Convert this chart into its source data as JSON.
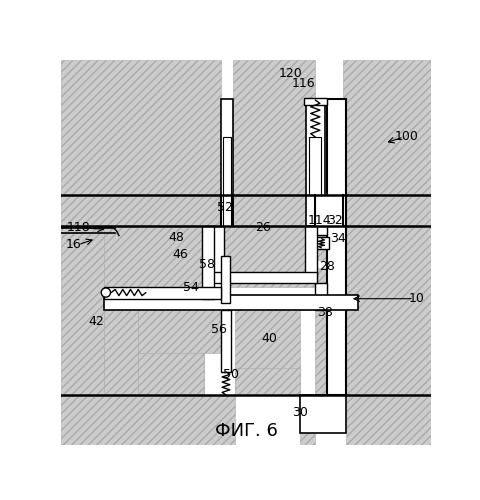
{
  "title": "ФИГ. 6",
  "title_fontsize": 13,
  "bg": "#ffffff",
  "lc": "#000000",
  "hatch_fc": "#cccccc",
  "hatch_ec": "#aaaaaa",
  "hatch_pattern": "////",
  "labels": [
    "10",
    "16",
    "26",
    "28",
    "30",
    "32",
    "34",
    "38",
    "40",
    "42",
    "46",
    "48",
    "50",
    "52",
    "54",
    "56",
    "58",
    "100",
    "114",
    "116",
    "118",
    "120"
  ],
  "lx_img": [
    462,
    16,
    262,
    345,
    310,
    355,
    360,
    342,
    270,
    45,
    155,
    150,
    220,
    212,
    168,
    205,
    190,
    448,
    335,
    315,
    22,
    298
  ],
  "ly_img": [
    310,
    240,
    218,
    268,
    458,
    208,
    232,
    328,
    362,
    340,
    252,
    230,
    408,
    192,
    295,
    350,
    265,
    100,
    208,
    30,
    218,
    18
  ]
}
